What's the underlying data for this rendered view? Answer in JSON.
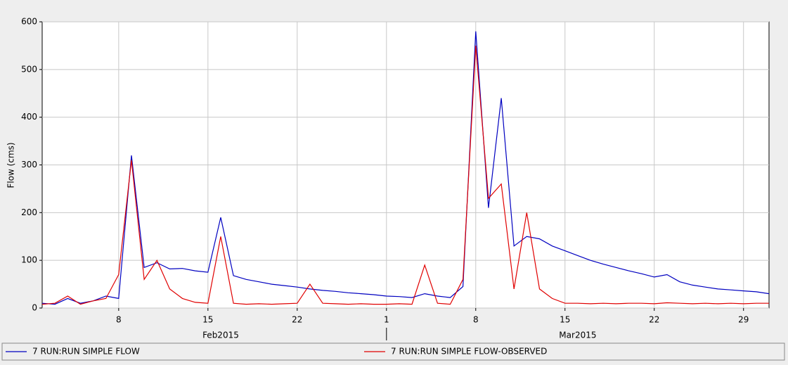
{
  "chart_data": {
    "type": "line",
    "y_label": "Flow (cms)",
    "x": [
      "2015-02-02",
      "2015-02-03",
      "2015-02-04",
      "2015-02-05",
      "2015-02-06",
      "2015-02-07",
      "2015-02-08",
      "2015-02-09",
      "2015-02-10",
      "2015-02-11",
      "2015-02-12",
      "2015-02-13",
      "2015-02-14",
      "2015-02-15",
      "2015-02-16",
      "2015-02-17",
      "2015-02-18",
      "2015-02-19",
      "2015-02-20",
      "2015-02-21",
      "2015-02-22",
      "2015-02-23",
      "2015-02-24",
      "2015-02-25",
      "2015-02-26",
      "2015-02-27",
      "2015-02-28",
      "2015-03-01",
      "2015-03-02",
      "2015-03-03",
      "2015-03-04",
      "2015-03-05",
      "2015-03-06",
      "2015-03-07",
      "2015-03-08",
      "2015-03-09",
      "2015-03-10",
      "2015-03-11",
      "2015-03-12",
      "2015-03-13",
      "2015-03-14",
      "2015-03-15",
      "2015-03-16",
      "2015-03-17",
      "2015-03-18",
      "2015-03-19",
      "2015-03-20",
      "2015-03-21",
      "2015-03-22",
      "2015-03-23",
      "2015-03-24",
      "2015-03-25",
      "2015-03-26",
      "2015-03-27",
      "2015-03-28",
      "2015-03-29",
      "2015-03-30",
      "2015-03-31"
    ],
    "series": [
      {
        "name": "7 RUN:RUN SIMPLE FLOW",
        "color": "#0000c0",
        "values": [
          10,
          8,
          20,
          10,
          15,
          25,
          20,
          320,
          85,
          95,
          82,
          83,
          78,
          75,
          190,
          68,
          60,
          55,
          50,
          47,
          44,
          40,
          37,
          35,
          32,
          30,
          28,
          25,
          24,
          22,
          30,
          25,
          22,
          45,
          580,
          210,
          440,
          130,
          150,
          145,
          130,
          120,
          110,
          100,
          92,
          85,
          78,
          72,
          65,
          70,
          55,
          48,
          44,
          40,
          38,
          36,
          34,
          30
        ]
      },
      {
        "name": "7 RUN:RUN SIMPLE FLOW-OBSERVED",
        "color": "#e00000",
        "values": [
          8,
          10,
          25,
          8,
          15,
          20,
          70,
          310,
          60,
          100,
          40,
          20,
          12,
          10,
          150,
          10,
          8,
          9,
          8,
          9,
          10,
          50,
          10,
          9,
          8,
          9,
          8,
          8,
          9,
          8,
          90,
          10,
          8,
          60,
          550,
          230,
          260,
          40,
          200,
          40,
          20,
          10,
          10,
          9,
          10,
          9,
          10,
          10,
          9,
          11,
          10,
          9,
          10,
          9,
          10,
          9,
          10,
          10
        ]
      }
    ],
    "xlim": [
      "2015-02-02",
      "2015-03-31"
    ],
    "xticks": [
      {
        "value": "2015-02-08",
        "label": "8"
      },
      {
        "value": "2015-02-15",
        "label": "15"
      },
      {
        "value": "2015-02-22",
        "label": "22"
      },
      {
        "value": "2015-03-01",
        "label": "1"
      },
      {
        "value": "2015-03-08",
        "label": "8"
      },
      {
        "value": "2015-03-15",
        "label": "15"
      },
      {
        "value": "2015-03-22",
        "label": "22"
      },
      {
        "value": "2015-03-29",
        "label": "29"
      }
    ],
    "month_labels": [
      {
        "value": "2015-02-16",
        "label": "Feb2015"
      },
      {
        "value": "2015-03-16",
        "label": "Mar2015"
      }
    ],
    "ylim": [
      0,
      600
    ],
    "yticks": [
      0,
      100,
      200,
      300,
      400,
      500,
      600
    ],
    "grid": true
  }
}
